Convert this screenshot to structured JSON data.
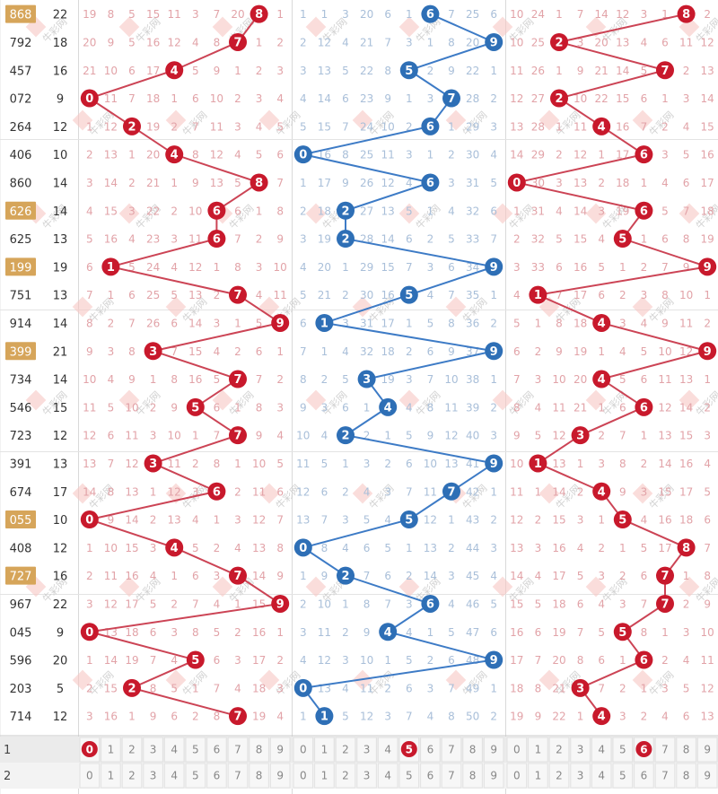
{
  "rows": [
    {
      "issue": "868",
      "sum": "22",
      "highlight": true,
      "g1": {
        "hit": 8,
        "miss": [
          "19",
          "8",
          "5",
          "15",
          "11",
          "3",
          "7",
          "20",
          "",
          "1"
        ]
      },
      "g2": {
        "hit": 6,
        "miss": [
          "1",
          "1",
          "3",
          "20",
          "6",
          "1",
          "",
          "7",
          "25",
          "6"
        ]
      },
      "g3": {
        "hit": 8,
        "miss": [
          "10",
          "24",
          "1",
          "7",
          "14",
          "12",
          "3",
          "1",
          "",
          "2"
        ]
      }
    },
    {
      "issue": "792",
      "sum": "18",
      "highlight": false,
      "g1": {
        "hit": 7,
        "miss": [
          "20",
          "9",
          "5",
          "16",
          "12",
          "4",
          "8",
          "",
          "1",
          "2"
        ]
      },
      "g2": {
        "hit": 9,
        "miss": [
          "2",
          "12",
          "4",
          "21",
          "7",
          "3",
          "1",
          "8",
          "20",
          ""
        ]
      },
      "g3": {
        "hit": 2,
        "miss": [
          "10",
          "25",
          "",
          "3",
          "20",
          "13",
          "4",
          "6",
          "11",
          "12"
        ]
      }
    },
    {
      "issue": "457",
      "sum": "16",
      "highlight": false,
      "g1": {
        "hit": 4,
        "miss": [
          "21",
          "10",
          "6",
          "17",
          "",
          "5",
          "9",
          "1",
          "2",
          "3"
        ]
      },
      "g2": {
        "hit": 5,
        "miss": [
          "3",
          "13",
          "5",
          "22",
          "8",
          "",
          "2",
          "9",
          "22",
          "1"
        ]
      },
      "g3": {
        "hit": 7,
        "miss": [
          "11",
          "26",
          "1",
          "9",
          "21",
          "14",
          "5",
          "",
          "2",
          "13"
        ]
      }
    },
    {
      "issue": "072",
      "sum": "9",
      "highlight": false,
      "g1": {
        "hit": 0,
        "miss": [
          "",
          "11",
          "7",
          "18",
          "1",
          "6",
          "10",
          "2",
          "3",
          "4"
        ]
      },
      "g2": {
        "hit": 7,
        "miss": [
          "4",
          "14",
          "6",
          "23",
          "9",
          "1",
          "3",
          "",
          "28",
          "2"
        ]
      },
      "g3": {
        "hit": 2,
        "miss": [
          "12",
          "27",
          "",
          "10",
          "22",
          "15",
          "6",
          "1",
          "3",
          "14"
        ]
      }
    },
    {
      "issue": "264",
      "sum": "12",
      "highlight": false,
      "g1": {
        "hit": 2,
        "miss": [
          "1",
          "12",
          "",
          "19",
          "2",
          "7",
          "11",
          "3",
          "4",
          "5"
        ]
      },
      "g2": {
        "hit": 6,
        "miss": [
          "5",
          "15",
          "7",
          "24",
          "10",
          "2",
          "",
          "1",
          "29",
          "3"
        ]
      },
      "g3": {
        "hit": 4,
        "miss": [
          "13",
          "28",
          "1",
          "11",
          "",
          "16",
          "7",
          "2",
          "4",
          "15"
        ]
      }
    },
    {
      "issue": "406",
      "sum": "10",
      "highlight": false,
      "g1": {
        "hit": 4,
        "miss": [
          "2",
          "13",
          "1",
          "20",
          "",
          "8",
          "12",
          "4",
          "5",
          "6"
        ]
      },
      "g2": {
        "hit": 0,
        "miss": [
          "",
          "16",
          "8",
          "25",
          "11",
          "3",
          "1",
          "2",
          "30",
          "4"
        ]
      },
      "g3": {
        "hit": 6,
        "miss": [
          "14",
          "29",
          "2",
          "12",
          "1",
          "17",
          "",
          "3",
          "5",
          "16"
        ]
      }
    },
    {
      "issue": "860",
      "sum": "14",
      "highlight": false,
      "g1": {
        "hit": 8,
        "miss": [
          "3",
          "14",
          "2",
          "21",
          "1",
          "9",
          "13",
          "5",
          "",
          "7"
        ]
      },
      "g2": {
        "hit": 6,
        "miss": [
          "1",
          "17",
          "9",
          "26",
          "12",
          "4",
          "",
          "3",
          "31",
          "5"
        ]
      },
      "g3": {
        "hit": 0,
        "miss": [
          "",
          "30",
          "3",
          "13",
          "2",
          "18",
          "1",
          "4",
          "6",
          "17"
        ]
      }
    },
    {
      "issue": "626",
      "sum": "14",
      "highlight": true,
      "g1": {
        "hit": 6,
        "miss": [
          "4",
          "15",
          "3",
          "22",
          "2",
          "10",
          "",
          "6",
          "1",
          "8"
        ]
      },
      "g2": {
        "hit": 2,
        "miss": [
          "2",
          "18",
          "",
          "27",
          "13",
          "5",
          "1",
          "4",
          "32",
          "6"
        ]
      },
      "g3": {
        "hit": 6,
        "miss": [
          "1",
          "31",
          "4",
          "14",
          "3",
          "19",
          "",
          "5",
          "7",
          "18"
        ]
      }
    },
    {
      "issue": "625",
      "sum": "13",
      "highlight": false,
      "g1": {
        "hit": 6,
        "miss": [
          "5",
          "16",
          "4",
          "23",
          "3",
          "11",
          "",
          "7",
          "2",
          "9"
        ]
      },
      "g2": {
        "hit": 2,
        "miss": [
          "3",
          "19",
          "",
          "28",
          "14",
          "6",
          "2",
          "5",
          "33",
          "7"
        ]
      },
      "g3": {
        "hit": 5,
        "miss": [
          "2",
          "32",
          "5",
          "15",
          "4",
          "",
          "1",
          "6",
          "8",
          "19"
        ]
      }
    },
    {
      "issue": "199",
      "sum": "19",
      "highlight": true,
      "g1": {
        "hit": 1,
        "miss": [
          "6",
          "",
          "5",
          "24",
          "4",
          "12",
          "1",
          "8",
          "3",
          "10"
        ]
      },
      "g2": {
        "hit": 9,
        "miss": [
          "4",
          "20",
          "1",
          "29",
          "15",
          "7",
          "3",
          "6",
          "34",
          ""
        ]
      },
      "g3": {
        "hit": 9,
        "miss": [
          "3",
          "33",
          "6",
          "16",
          "5",
          "1",
          "2",
          "7",
          "9",
          ""
        ]
      }
    },
    {
      "issue": "751",
      "sum": "13",
      "highlight": false,
      "g1": {
        "hit": 7,
        "miss": [
          "7",
          "1",
          "6",
          "25",
          "5",
          "13",
          "2",
          "",
          "4",
          "11"
        ]
      },
      "g2": {
        "hit": 5,
        "miss": [
          "5",
          "21",
          "2",
          "30",
          "16",
          "",
          "4",
          "7",
          "35",
          "1"
        ]
      },
      "g3": {
        "hit": 1,
        "miss": [
          "4",
          "",
          "7",
          "17",
          "6",
          "2",
          "3",
          "8",
          "10",
          "1"
        ]
      }
    },
    {
      "issue": "914",
      "sum": "14",
      "highlight": false,
      "g1": {
        "hit": 9,
        "miss": [
          "8",
          "2",
          "7",
          "26",
          "6",
          "14",
          "3",
          "1",
          "5",
          ""
        ]
      },
      "g2": {
        "hit": 1,
        "miss": [
          "6",
          "",
          "3",
          "31",
          "17",
          "1",
          "5",
          "8",
          "36",
          "2"
        ]
      },
      "g3": {
        "hit": 4,
        "miss": [
          "5",
          "1",
          "8",
          "18",
          "",
          "3",
          "4",
          "9",
          "11",
          "2"
        ]
      }
    },
    {
      "issue": "399",
      "sum": "21",
      "highlight": true,
      "g1": {
        "hit": 3,
        "miss": [
          "9",
          "3",
          "8",
          "",
          "7",
          "15",
          "4",
          "2",
          "6",
          "1"
        ]
      },
      "g2": {
        "hit": 9,
        "miss": [
          "7",
          "1",
          "4",
          "32",
          "18",
          "2",
          "6",
          "9",
          "37",
          ""
        ]
      },
      "g3": {
        "hit": 9,
        "miss": [
          "6",
          "2",
          "9",
          "19",
          "1",
          "4",
          "5",
          "10",
          "12",
          ""
        ]
      }
    },
    {
      "issue": "734",
      "sum": "14",
      "highlight": false,
      "g1": {
        "hit": 7,
        "miss": [
          "10",
          "4",
          "9",
          "1",
          "8",
          "16",
          "5",
          "",
          "7",
          "2"
        ]
      },
      "g2": {
        "hit": 3,
        "miss": [
          "8",
          "2",
          "5",
          "",
          "19",
          "3",
          "7",
          "10",
          "38",
          "1"
        ]
      },
      "g3": {
        "hit": 4,
        "miss": [
          "7",
          "3",
          "10",
          "20",
          "",
          "5",
          "6",
          "11",
          "13",
          "1"
        ]
      }
    },
    {
      "issue": "546",
      "sum": "15",
      "highlight": false,
      "g1": {
        "hit": 5,
        "miss": [
          "11",
          "5",
          "10",
          "2",
          "9",
          "",
          "6",
          "1",
          "8",
          "3"
        ]
      },
      "g2": {
        "hit": 4,
        "miss": [
          "9",
          "3",
          "6",
          "1",
          "",
          "4",
          "8",
          "11",
          "39",
          "2"
        ]
      },
      "g3": {
        "hit": 6,
        "miss": [
          "8",
          "4",
          "11",
          "21",
          "1",
          "6",
          "",
          "12",
          "14",
          "2"
        ]
      }
    },
    {
      "issue": "723",
      "sum": "12",
      "highlight": false,
      "g1": {
        "hit": 7,
        "miss": [
          "12",
          "6",
          "11",
          "3",
          "10",
          "1",
          "7",
          "",
          "9",
          "4"
        ]
      },
      "g2": {
        "hit": 2,
        "miss": [
          "10",
          "4",
          "",
          "2",
          "1",
          "5",
          "9",
          "12",
          "40",
          "3"
        ]
      },
      "g3": {
        "hit": 3,
        "miss": [
          "9",
          "5",
          "12",
          "",
          "2",
          "7",
          "1",
          "13",
          "15",
          "3"
        ]
      }
    },
    {
      "issue": "391",
      "sum": "13",
      "highlight": false,
      "g1": {
        "hit": 3,
        "miss": [
          "13",
          "7",
          "12",
          "",
          "11",
          "2",
          "8",
          "1",
          "10",
          "5"
        ]
      },
      "g2": {
        "hit": 9,
        "miss": [
          "11",
          "5",
          "1",
          "3",
          "2",
          "6",
          "10",
          "13",
          "41",
          ""
        ]
      },
      "g3": {
        "hit": 1,
        "miss": [
          "10",
          "",
          "13",
          "1",
          "3",
          "8",
          "2",
          "14",
          "16",
          "4"
        ]
      }
    },
    {
      "issue": "674",
      "sum": "17",
      "highlight": false,
      "g1": {
        "hit": 6,
        "miss": [
          "14",
          "8",
          "13",
          "1",
          "12",
          "3",
          "",
          "2",
          "11",
          "6"
        ]
      },
      "g2": {
        "hit": 7,
        "miss": [
          "12",
          "6",
          "2",
          "4",
          "3",
          "7",
          "11",
          "",
          "42",
          "1"
        ]
      },
      "g3": {
        "hit": 4,
        "miss": [
          "11",
          "1",
          "14",
          "2",
          "",
          "9",
          "3",
          "15",
          "17",
          "5"
        ]
      }
    },
    {
      "issue": "055",
      "sum": "10",
      "highlight": true,
      "g1": {
        "hit": 0,
        "miss": [
          "",
          "9",
          "14",
          "2",
          "13",
          "4",
          "1",
          "3",
          "12",
          "7"
        ]
      },
      "g2": {
        "hit": 5,
        "miss": [
          "13",
          "7",
          "3",
          "5",
          "4",
          "",
          "12",
          "1",
          "43",
          "2"
        ]
      },
      "g3": {
        "hit": 5,
        "miss": [
          "12",
          "2",
          "15",
          "3",
          "1",
          "",
          "4",
          "16",
          "18",
          "6"
        ]
      }
    },
    {
      "issue": "408",
      "sum": "12",
      "highlight": false,
      "g1": {
        "hit": 4,
        "miss": [
          "1",
          "10",
          "15",
          "3",
          "",
          "5",
          "2",
          "4",
          "13",
          "8"
        ]
      },
      "g2": {
        "hit": 0,
        "miss": [
          "",
          "8",
          "4",
          "6",
          "5",
          "1",
          "13",
          "2",
          "44",
          "3"
        ]
      },
      "g3": {
        "hit": 8,
        "miss": [
          "13",
          "3",
          "16",
          "4",
          "2",
          "1",
          "5",
          "17",
          "",
          "7"
        ]
      }
    },
    {
      "issue": "727",
      "sum": "16",
      "highlight": true,
      "g1": {
        "hit": 7,
        "miss": [
          "2",
          "11",
          "16",
          "4",
          "1",
          "6",
          "3",
          "",
          "14",
          "9"
        ]
      },
      "g2": {
        "hit": 2,
        "miss": [
          "1",
          "9",
          "",
          "7",
          "6",
          "2",
          "14",
          "3",
          "45",
          "4"
        ]
      },
      "g3": {
        "hit": 7,
        "miss": [
          "14",
          "4",
          "17",
          "5",
          "3",
          "2",
          "6",
          "",
          "1",
          "8"
        ]
      }
    },
    {
      "issue": "967",
      "sum": "22",
      "highlight": false,
      "g1": {
        "hit": 9,
        "miss": [
          "3",
          "12",
          "17",
          "5",
          "2",
          "7",
          "4",
          "1",
          "15",
          ""
        ]
      },
      "g2": {
        "hit": 6,
        "miss": [
          "2",
          "10",
          "1",
          "8",
          "7",
          "3",
          "",
          "4",
          "46",
          "5"
        ]
      },
      "g3": {
        "hit": 7,
        "miss": [
          "15",
          "5",
          "18",
          "6",
          "4",
          "3",
          "7",
          "",
          "2",
          "9"
        ]
      }
    },
    {
      "issue": "045",
      "sum": "9",
      "highlight": false,
      "g1": {
        "hit": 0,
        "miss": [
          "",
          "13",
          "18",
          "6",
          "3",
          "8",
          "5",
          "2",
          "16",
          "1"
        ]
      },
      "g2": {
        "hit": 4,
        "miss": [
          "3",
          "11",
          "2",
          "9",
          "",
          "4",
          "1",
          "5",
          "47",
          "6"
        ]
      },
      "g3": {
        "hit": 5,
        "miss": [
          "16",
          "6",
          "19",
          "7",
          "5",
          "",
          "8",
          "1",
          "3",
          "10"
        ]
      }
    },
    {
      "issue": "596",
      "sum": "20",
      "highlight": false,
      "g1": {
        "hit": 5,
        "miss": [
          "1",
          "14",
          "19",
          "7",
          "4",
          "",
          "6",
          "3",
          "17",
          "2"
        ]
      },
      "g2": {
        "hit": 9,
        "miss": [
          "4",
          "12",
          "3",
          "10",
          "1",
          "5",
          "2",
          "6",
          "48",
          ""
        ]
      },
      "g3": {
        "hit": 6,
        "miss": [
          "17",
          "7",
          "20",
          "8",
          "6",
          "1",
          "",
          "2",
          "4",
          "11"
        ]
      }
    },
    {
      "issue": "203",
      "sum": "5",
      "highlight": false,
      "g1": {
        "hit": 2,
        "miss": [
          "2",
          "15",
          "",
          "8",
          "5",
          "1",
          "7",
          "4",
          "18",
          "3"
        ]
      },
      "g2": {
        "hit": 0,
        "miss": [
          "",
          "13",
          "4",
          "11",
          "2",
          "6",
          "3",
          "7",
          "49",
          "1"
        ]
      },
      "g3": {
        "hit": 3,
        "miss": [
          "18",
          "8",
          "21",
          "",
          "7",
          "2",
          "1",
          "3",
          "5",
          "12"
        ]
      }
    },
    {
      "issue": "714",
      "sum": "12",
      "highlight": false,
      "g1": {
        "hit": 7,
        "miss": [
          "3",
          "16",
          "1",
          "9",
          "6",
          "2",
          "8",
          "",
          "19",
          "4"
        ]
      },
      "g2": {
        "hit": 1,
        "miss": [
          "1",
          "",
          "5",
          "12",
          "3",
          "7",
          "4",
          "8",
          "50",
          "2"
        ]
      },
      "g3": {
        "hit": 4,
        "miss": [
          "19",
          "9",
          "22",
          "1",
          "",
          "3",
          "2",
          "4",
          "6",
          "13"
        ]
      }
    }
  ],
  "footer": [
    {
      "label": "1",
      "marks": [
        0,
        5,
        6
      ]
    },
    {
      "label": "2",
      "marks": []
    }
  ],
  "digits": [
    "0",
    "1",
    "2",
    "3",
    "4",
    "5",
    "6",
    "7",
    "8",
    "9"
  ],
  "watermark": "牛彩网",
  "colors": {
    "red": "#c8192c",
    "blue": "#2e6fb6",
    "red_line": "#cc4455",
    "blue_line": "#3d7bc6",
    "highlight": "#d6a55a",
    "miss_text": "#e2a3a8",
    "miss_text_mid": "#a9bfd9",
    "footer_bg": "#f0f0f0"
  }
}
